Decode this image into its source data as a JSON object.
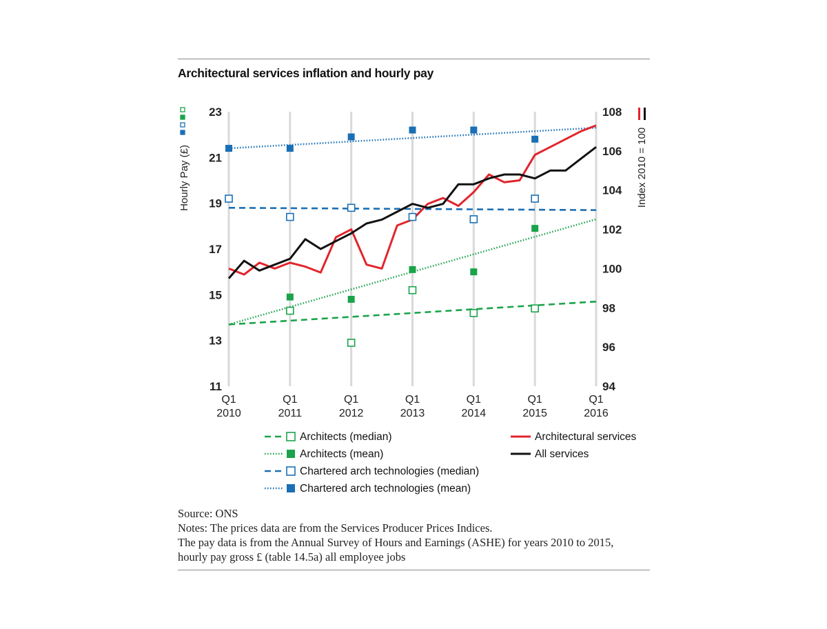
{
  "chart_data": {
    "type": "line",
    "title": "Architectural services inflation and hourly pay",
    "y_left": {
      "label": "Hourly Pay (£)",
      "range": [
        11,
        23
      ],
      "ticks": [
        "23",
        "21",
        "19",
        "17",
        "15",
        "13",
        "11"
      ]
    },
    "y_right": {
      "label": "Index 2010 = 100",
      "range": [
        94,
        108
      ],
      "ticks": [
        "108",
        "106",
        "104",
        "102",
        "100",
        "98",
        "96",
        "94"
      ]
    },
    "x_ticks": [
      {
        "q": "Q1",
        "year": "2010",
        "t": 2010
      },
      {
        "q": "Q1",
        "year": "2011",
        "t": 2011
      },
      {
        "q": "Q1",
        "year": "2012",
        "t": 2012
      },
      {
        "q": "Q1",
        "year": "2013",
        "t": 2013
      },
      {
        "q": "Q1",
        "year": "2014",
        "t": 2014
      },
      {
        "q": "Q1",
        "year": "2015",
        "t": 2015
      },
      {
        "q": "Q1",
        "year": "2016",
        "t": 2016
      }
    ],
    "index_series": [
      {
        "name": "Architectural services",
        "color": "#e2242c",
        "x": [
          2010,
          2010.25,
          2010.5,
          2010.75,
          2011,
          2011.25,
          2011.5,
          2011.75,
          2012,
          2012.25,
          2012.5,
          2012.75,
          2013,
          2013.25,
          2013.5,
          2013.75,
          2014,
          2014.25,
          2014.5,
          2014.75,
          2015,
          2015.25,
          2015.5,
          2015.75,
          2016
        ],
        "values": [
          100,
          99.7,
          100.3,
          100.0,
          100.3,
          100.1,
          99.8,
          101.6,
          102.0,
          100.2,
          100.0,
          102.2,
          102.5,
          103.3,
          103.6,
          103.2,
          103.9,
          104.8,
          104.4,
          104.5,
          105.8,
          106.2,
          106.6,
          107.0,
          107.3
        ]
      },
      {
        "name": "All services",
        "color": "#111111",
        "x": [
          2010,
          2010.25,
          2010.5,
          2010.75,
          2011,
          2011.25,
          2011.5,
          2011.75,
          2012,
          2012.25,
          2012.5,
          2012.75,
          2013,
          2013.25,
          2013.5,
          2013.75,
          2014,
          2014.25,
          2014.5,
          2014.75,
          2015,
          2015.25,
          2015.5,
          2015.75,
          2016
        ],
        "values": [
          99.5,
          100.4,
          99.9,
          100.2,
          100.5,
          101.5,
          101.0,
          101.4,
          101.8,
          102.3,
          102.5,
          102.9,
          103.3,
          103.1,
          103.3,
          104.3,
          104.3,
          104.6,
          104.8,
          104.8,
          104.6,
          105.0,
          105.0,
          105.6,
          106.2
        ]
      }
    ],
    "pay_series": [
      {
        "name": "Architects (median)",
        "color": "#1aa34a",
        "marker": "open",
        "x": [
          2010,
          2011,
          2012,
          2013,
          2014,
          2015
        ],
        "values": [
          null,
          14.3,
          12.9,
          15.2,
          14.2,
          14.4
        ],
        "trend": {
          "style": "dashed",
          "x": [
            2010,
            2016
          ],
          "values": [
            13.7,
            14.7
          ]
        }
      },
      {
        "name": "Architects (mean)",
        "color": "#1aa34a",
        "marker": "filled",
        "x": [
          2010,
          2011,
          2012,
          2013,
          2014,
          2015
        ],
        "values": [
          null,
          14.9,
          14.8,
          16.1,
          16.0,
          17.9
        ],
        "trend": {
          "style": "dotted",
          "x": [
            2010,
            2016
          ],
          "values": [
            13.7,
            18.3
          ]
        }
      },
      {
        "name": "Chartered arch technologies (median)",
        "color": "#1a6fb5",
        "marker": "open",
        "x": [
          2010,
          2011,
          2012,
          2013,
          2014,
          2015
        ],
        "values": [
          19.2,
          18.4,
          18.8,
          18.4,
          18.3,
          19.2
        ],
        "trend": {
          "style": "dashed",
          "x": [
            2010,
            2016
          ],
          "values": [
            18.8,
            18.7
          ]
        }
      },
      {
        "name": "Chartered arch technologies (mean)",
        "color": "#1a6fb5",
        "marker": "filled",
        "x": [
          2010,
          2011,
          2012,
          2013,
          2014,
          2015
        ],
        "values": [
          21.4,
          21.4,
          21.9,
          22.2,
          22.2,
          21.8
        ],
        "trend": {
          "style": "dotted",
          "x": [
            2010,
            2016
          ],
          "values": [
            21.4,
            22.3
          ]
        }
      }
    ],
    "legend_left": [
      "Architects (median)",
      "Architects (mean)",
      "Chartered arch technologies (median)",
      "Chartered arch technologies (mean)"
    ],
    "legend_right": [
      "Architectural services",
      "All services"
    ],
    "grid": "vertical"
  },
  "notes": {
    "source": "Source: ONS",
    "line1": "Notes: The prices data are from the Services Producer Prices Indices.",
    "line2": "The pay data is from the Annual Survey of Hours and Earnings (ASHE) for years 2010 to 2015,",
    "line3": "hourly pay gross £ (table 14.5a) all employee jobs"
  }
}
